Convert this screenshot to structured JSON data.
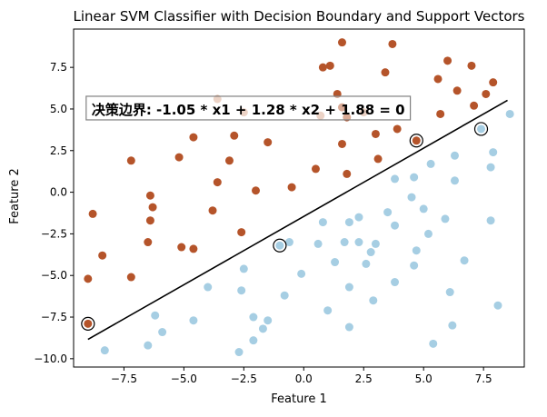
{
  "chart_data": {
    "type": "scatter",
    "title": "Linear SVM Classifier with Decision Boundary and Support Vectors",
    "xlabel": "Feature 1",
    "ylabel": "Feature 2",
    "xlim": [
      -9.6,
      9.2
    ],
    "ylim": [
      -10.5,
      9.8
    ],
    "xticks": [
      -7.5,
      -5.0,
      -2.5,
      0.0,
      2.5,
      5.0,
      7.5
    ],
    "xtick_labels": [
      "−7.5",
      "−5.0",
      "−2.5",
      "0.0",
      "2.5",
      "5.0",
      "7.5"
    ],
    "yticks": [
      -10.0,
      -7.5,
      -5.0,
      -2.5,
      0.0,
      2.5,
      5.0,
      7.5
    ],
    "ytick_labels": [
      "−10.0",
      "−7.5",
      "−5.0",
      "−2.5",
      "0.0",
      "2.5",
      "5.0",
      "7.5"
    ],
    "grid": false,
    "series": [
      {
        "color": "#b5542a",
        "points": [
          [
            1.6,
            9.0
          ],
          [
            3.7,
            8.9
          ],
          [
            1.1,
            7.6
          ],
          [
            0.8,
            7.5
          ],
          [
            3.4,
            7.2
          ],
          [
            6.0,
            7.9
          ],
          [
            7.0,
            7.6
          ],
          [
            5.6,
            6.8
          ],
          [
            7.9,
            6.6
          ],
          [
            6.4,
            6.1
          ],
          [
            7.6,
            5.9
          ],
          [
            1.4,
            5.9
          ],
          [
            7.1,
            5.2
          ],
          [
            1.6,
            5.1
          ],
          [
            5.7,
            4.7
          ],
          [
            1.8,
            4.5
          ],
          [
            3.9,
            3.8
          ],
          [
            3.0,
            3.5
          ],
          [
            -2.9,
            3.4
          ],
          [
            -4.6,
            3.3
          ],
          [
            -1.5,
            3.0
          ],
          [
            1.6,
            2.9
          ],
          [
            -7.2,
            1.9
          ],
          [
            -5.2,
            2.1
          ],
          [
            -3.1,
            1.9
          ],
          [
            3.1,
            2.0
          ],
          [
            0.5,
            1.4
          ],
          [
            1.8,
            1.1
          ],
          [
            -3.6,
            0.6
          ],
          [
            -6.4,
            -0.2
          ],
          [
            -2.0,
            0.1
          ],
          [
            -0.5,
            0.3
          ],
          [
            -6.3,
            -0.9
          ],
          [
            -3.8,
            -1.1
          ],
          [
            -8.8,
            -1.3
          ],
          [
            -6.4,
            -1.7
          ],
          [
            -2.6,
            -2.4
          ],
          [
            -6.5,
            -3.0
          ],
          [
            -5.1,
            -3.3
          ],
          [
            -4.6,
            -3.4
          ],
          [
            -8.4,
            -3.8
          ],
          [
            -7.2,
            -5.1
          ],
          [
            -9.0,
            -5.2
          ]
        ]
      },
      {
        "color": "#a6cee3",
        "points": [
          [
            8.6,
            4.7
          ],
          [
            7.9,
            2.4
          ],
          [
            5.3,
            1.7
          ],
          [
            6.3,
            2.2
          ],
          [
            4.6,
            0.9
          ],
          [
            7.8,
            1.5
          ],
          [
            3.8,
            0.8
          ],
          [
            6.3,
            0.7
          ],
          [
            4.5,
            -0.3
          ],
          [
            5.0,
            -1.0
          ],
          [
            5.9,
            -1.6
          ],
          [
            7.8,
            -1.7
          ],
          [
            3.5,
            -1.2
          ],
          [
            2.3,
            -1.5
          ],
          [
            3.8,
            -2.0
          ],
          [
            1.9,
            -1.8
          ],
          [
            0.8,
            -1.8
          ],
          [
            5.2,
            -2.5
          ],
          [
            1.7,
            -3.0
          ],
          [
            2.3,
            -3.0
          ],
          [
            3.0,
            -3.1
          ],
          [
            0.6,
            -3.1
          ],
          [
            -0.6,
            -3.0
          ],
          [
            4.7,
            -3.5
          ],
          [
            2.8,
            -3.6
          ],
          [
            1.3,
            -4.2
          ],
          [
            2.6,
            -4.3
          ],
          [
            4.6,
            -4.4
          ],
          [
            -2.5,
            -4.6
          ],
          [
            -0.1,
            -4.9
          ],
          [
            3.8,
            -5.4
          ],
          [
            1.9,
            -5.7
          ],
          [
            -4.0,
            -5.7
          ],
          [
            -0.8,
            -6.2
          ],
          [
            6.7,
            -4.1
          ],
          [
            6.1,
            -6.0
          ],
          [
            -2.6,
            -5.9
          ],
          [
            2.9,
            -6.5
          ],
          [
            8.1,
            -6.8
          ],
          [
            1.0,
            -7.1
          ],
          [
            -6.2,
            -7.4
          ],
          [
            -2.1,
            -7.5
          ],
          [
            -4.6,
            -7.7
          ],
          [
            -1.5,
            -7.7
          ],
          [
            -1.7,
            -8.2
          ],
          [
            -5.9,
            -8.4
          ],
          [
            1.9,
            -8.1
          ],
          [
            6.2,
            -8.0
          ],
          [
            -2.1,
            -8.9
          ],
          [
            5.4,
            -9.1
          ],
          [
            -6.5,
            -9.2
          ],
          [
            -8.3,
            -9.5
          ],
          [
            -2.7,
            -9.6
          ]
        ]
      },
      {
        "color": "#d8a68c",
        "points": [
          [
            -3.6,
            5.6
          ],
          [
            -2.5,
            4.8
          ],
          [
            0.7,
            4.6
          ],
          [
            2.5,
            4.8
          ]
        ]
      }
    ],
    "decision_boundary": {
      "x": [
        -9.0,
        8.5
      ],
      "y": [
        -8.84,
        5.52
      ]
    },
    "support_vectors": [
      {
        "x": -9.0,
        "y": -7.9,
        "color": "#b5542a"
      },
      {
        "x": -1.0,
        "y": -3.2,
        "color": "#a6cee3"
      },
      {
        "x": 4.7,
        "y": 3.1,
        "color": "#b5542a"
      },
      {
        "x": 7.4,
        "y": 3.8,
        "color": "#a6cee3"
      }
    ],
    "annotation": {
      "text": "决策边界: -1.05 * x1 + 1.28 * x2 + 1.88 = 0",
      "x": -9.0,
      "y": 5.0
    }
  }
}
